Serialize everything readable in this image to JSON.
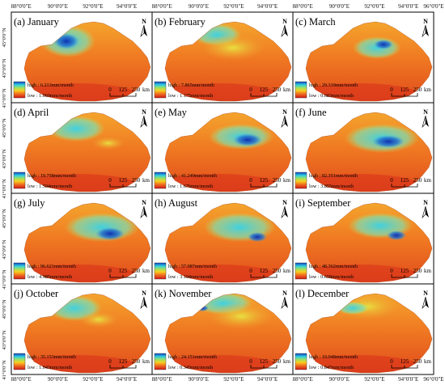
{
  "top_lon_labels": [
    "88°0'0\"E",
    "90°0'0\"E",
    "92°0'0\"E",
    "94°0'0\"E",
    "96°0'0\"E"
  ],
  "bottom_lon_labels": [
    "88°0'0\"E",
    "90°0'0\"E",
    "92°0'0\"E",
    "94°0'0\"E",
    "96°0'0\"E"
  ],
  "lat_labels": [
    "45°0'0\"N",
    "43°0'0\"N",
    "41°0'0\"N"
  ],
  "north_label": "N",
  "scale_bar": {
    "ticks": [
      "0",
      "125",
      "250"
    ],
    "unit": "km"
  },
  "legend_colors": [
    "#d0181a",
    "#f07020",
    "#f8d020",
    "#a0e060",
    "#30d0e0",
    "#1040c0"
  ],
  "panels": [
    {
      "title": "(a) January",
      "high": "high : 6.213mm/month",
      "low": "low : 1.069mm/month"
    },
    {
      "title": "(b) February",
      "high": "high : 7.865mm/month",
      "low": "low : 1.175mm/month"
    },
    {
      "title": "(c) March",
      "high": "high : 29.319mm/month",
      "low": "low : 0.683mm/month"
    },
    {
      "title": "(d) April",
      "high": "high : 19.758mm/month",
      "low": "low : 1.594mm/month"
    },
    {
      "title": "(e) May",
      "high": "high : 41.249mm/month",
      "low": "low : 1.676mm/month"
    },
    {
      "title": "(f) June",
      "high": "high : 82.351mm/month",
      "low": "low : 3.855mm/month"
    },
    {
      "title": "(g) July",
      "high": "high : 96.621mm/month",
      "low": "low : 4.985mm/month"
    },
    {
      "title": "(h) August",
      "high": "high : 57.087mm/month",
      "low": "low : 3.194mm/month"
    },
    {
      "title": "(i) September",
      "high": "high : 48.362mm/month",
      "low": "low : 0.658mm/month"
    },
    {
      "title": "(j) October",
      "high": "high : 35.153mm/month",
      "low": "low : 1.043mm/month"
    },
    {
      "title": "(k) November",
      "high": "high : 24.151mm/month",
      "low": "low : 0.345mm/month"
    },
    {
      "title": "(l) December",
      "high": "high : 10.048mm/month",
      "low": "low : 0.847mm/month"
    }
  ]
}
